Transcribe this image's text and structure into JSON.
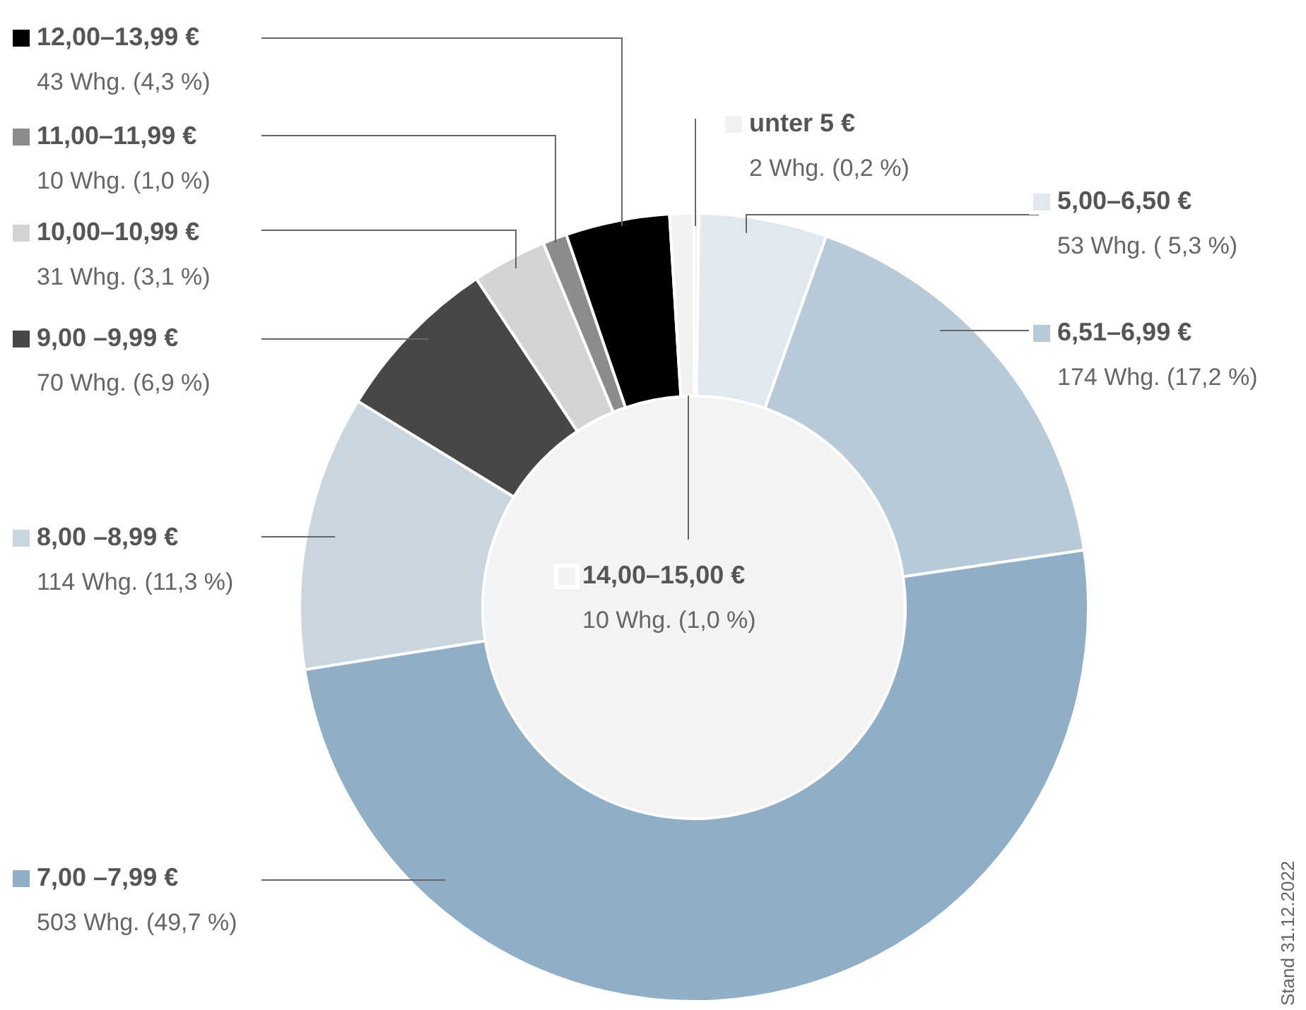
{
  "chart_data": {
    "type": "donut",
    "categories": [
      "unter 5 €",
      "5,00–6,50 €",
      "6,51–6,99 €",
      "7,00 –7,99 €",
      "8,00 –8,99 €",
      "9,00 –9,99 €",
      "10,00–10,99 €",
      "11,00–11,99 €",
      "12,00–13,99 €",
      "14,00–15,00 €"
    ],
    "values": [
      2,
      53,
      174,
      503,
      114,
      70,
      31,
      10,
      43,
      10
    ],
    "colors": [
      "#f2f2f2",
      "#e1e8ef",
      "#b8cad8",
      "#90afc6",
      "#c9d6e0",
      "#474747",
      "#d4d4d4",
      "#8c8c8c",
      "#000000",
      "#f2f2f2"
    ],
    "value_labels": [
      "2 Whg. (0,2 %)",
      "53 Whg. ( 5,3 %)",
      "174 Whg. (17,2 %)",
      "503 Whg. (49,7 %)",
      "114 Whg. (11,3 %)",
      "70 Whg. (6,9 %)",
      "31 Whg. (3,1 %)",
      "10 Whg. (1,0 %)",
      "43 Whg. (4,3 %)",
      "10 Whg. (1,0 %)"
    ],
    "annotations": [
      "Stand 31.12.2022"
    ],
    "legend": "left"
  }
}
